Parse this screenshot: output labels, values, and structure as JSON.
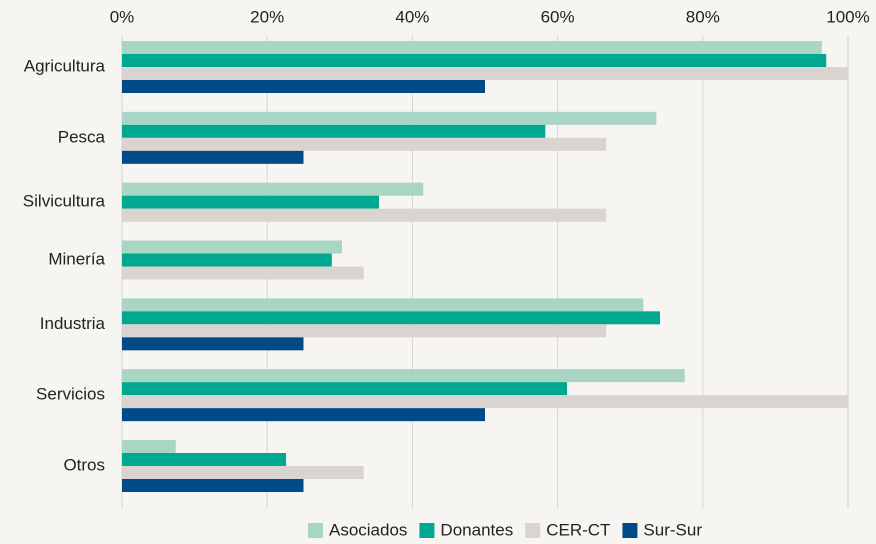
{
  "chart_data": {
    "type": "bar",
    "orientation": "horizontal",
    "categories": [
      "Agricultura",
      "Pesca",
      "Silvicultura",
      "Minería",
      "Industria",
      "Servicios",
      "Otros"
    ],
    "series": [
      {
        "name": "Asociados",
        "color": "#a8d5c4",
        "values": [
          96.4,
          73.6,
          41.5,
          30.3,
          71.8,
          77.5,
          7.4
        ]
      },
      {
        "name": "Donantes",
        "color": "#00a88f",
        "values": [
          97,
          58.3,
          35.4,
          28.9,
          74.1,
          61.3,
          22.6
        ]
      },
      {
        "name": "CER-CT",
        "color": "#d9d4cf",
        "values": [
          100,
          66.7,
          66.7,
          33.3,
          66.7,
          100,
          33.3
        ]
      },
      {
        "name": "Sur-Sur",
        "color": "#004b87",
        "values": [
          50,
          25,
          null,
          null,
          25,
          50,
          25
        ]
      }
    ],
    "xlim": [
      0,
      100
    ],
    "xticks": [
      {
        "value": 0,
        "label": "0%"
      },
      {
        "value": 20,
        "label": "20%"
      },
      {
        "value": 40,
        "label": "40%"
      },
      {
        "value": 60,
        "label": "60%"
      },
      {
        "value": 80,
        "label": "80%"
      },
      {
        "value": 100,
        "label": "100%"
      }
    ],
    "grid": true,
    "legend": "bottom"
  }
}
